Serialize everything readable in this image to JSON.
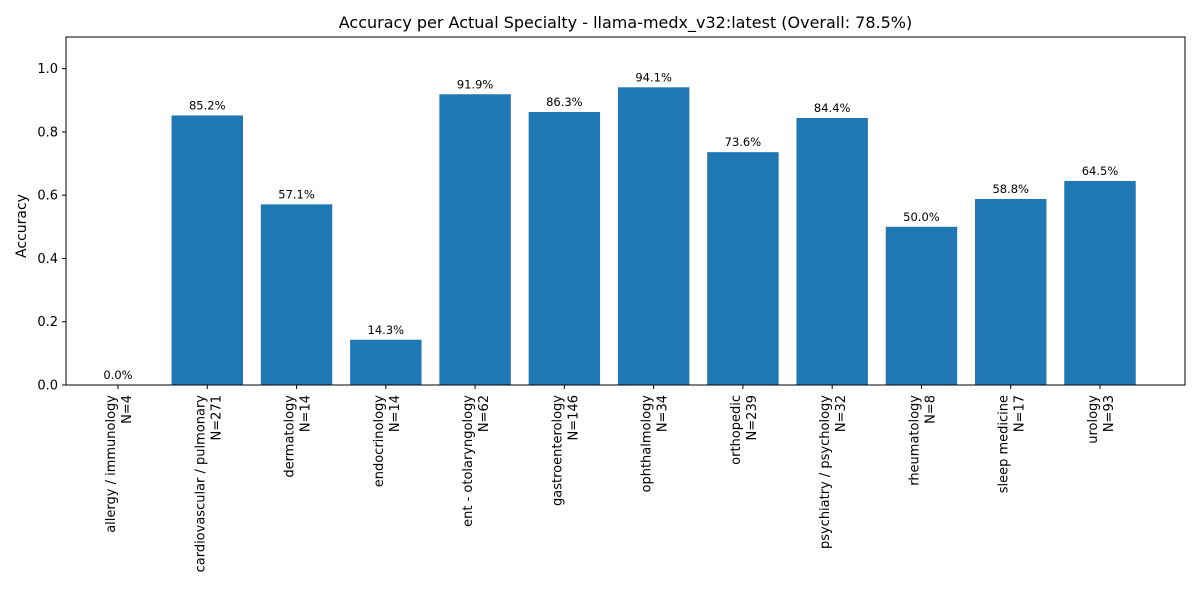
{
  "chart_data": {
    "type": "bar",
    "title": "Accuracy per Actual Specialty - llama-medx_v32:latest (Overall: 78.5%)",
    "xlabel": "",
    "ylabel": "Accuracy",
    "ylim": [
      0,
      1.1
    ],
    "yticks": [
      "0.0",
      "0.2",
      "0.4",
      "0.6",
      "0.8",
      "1.0"
    ],
    "ytick_values": [
      0,
      0.2,
      0.4,
      0.6,
      0.8,
      1.0
    ],
    "grid": false,
    "bar_color": "#1f77b4",
    "categories": [
      {
        "name": "allergy / immunology",
        "n": "N=4"
      },
      {
        "name": "cardiovascular / pulmonary",
        "n": "N=271"
      },
      {
        "name": "dermatology",
        "n": "N=14"
      },
      {
        "name": "endocrinology",
        "n": "N=14"
      },
      {
        "name": "ent - otolaryngology",
        "n": "N=62"
      },
      {
        "name": "gastroenterology",
        "n": "N=146"
      },
      {
        "name": "ophthalmology",
        "n": "N=34"
      },
      {
        "name": "orthopedic",
        "n": "N=239"
      },
      {
        "name": "psychiatry / psychology",
        "n": "N=32"
      },
      {
        "name": "rheumatology",
        "n": "N=8"
      },
      {
        "name": "sleep medicine",
        "n": "N=17"
      },
      {
        "name": "urology",
        "n": "N=93"
      }
    ],
    "values": [
      0.0,
      0.852,
      0.571,
      0.143,
      0.919,
      0.863,
      0.941,
      0.736,
      0.844,
      0.5,
      0.588,
      0.645
    ],
    "data_labels": [
      "0.0%",
      "85.2%",
      "57.1%",
      "14.3%",
      "91.9%",
      "86.3%",
      "94.1%",
      "73.6%",
      "84.4%",
      "50.0%",
      "58.8%",
      "64.5%"
    ]
  }
}
